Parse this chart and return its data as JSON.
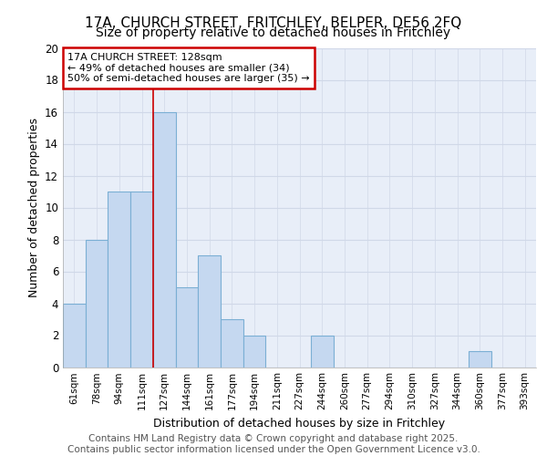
{
  "title1": "17A, CHURCH STREET, FRITCHLEY, BELPER, DE56 2FQ",
  "title2": "Size of property relative to detached houses in Fritchley",
  "xlabel": "Distribution of detached houses by size in Fritchley",
  "ylabel": "Number of detached properties",
  "categories": [
    "61sqm",
    "78sqm",
    "94sqm",
    "111sqm",
    "127sqm",
    "144sqm",
    "161sqm",
    "177sqm",
    "194sqm",
    "211sqm",
    "227sqm",
    "244sqm",
    "260sqm",
    "277sqm",
    "294sqm",
    "310sqm",
    "327sqm",
    "344sqm",
    "360sqm",
    "377sqm",
    "393sqm"
  ],
  "values": [
    4,
    8,
    11,
    11,
    16,
    5,
    7,
    3,
    2,
    0,
    0,
    2,
    0,
    0,
    0,
    0,
    0,
    0,
    1,
    0,
    0
  ],
  "bar_color": "#c5d8f0",
  "bar_edge_color": "#7bafd4",
  "highlight_bar_index": 4,
  "highlight_line_color": "#cc0000",
  "annotation_text": "17A CHURCH STREET: 128sqm\n← 49% of detached houses are smaller (34)\n50% of semi-detached houses are larger (35) →",
  "annotation_box_color": "#ffffff",
  "annotation_box_edge_color": "#cc0000",
  "ylim": [
    0,
    20
  ],
  "yticks": [
    0,
    2,
    4,
    6,
    8,
    10,
    12,
    14,
    16,
    18,
    20
  ],
  "background_color": "#e8eef8",
  "grid_color": "#d0d8e8",
  "footer_text": "Contains HM Land Registry data © Crown copyright and database right 2025.\nContains public sector information licensed under the Open Government Licence v3.0.",
  "title1_fontsize": 11,
  "title2_fontsize": 10,
  "xlabel_fontsize": 9,
  "ylabel_fontsize": 9,
  "annotation_fontsize": 8,
  "footer_fontsize": 7.5
}
